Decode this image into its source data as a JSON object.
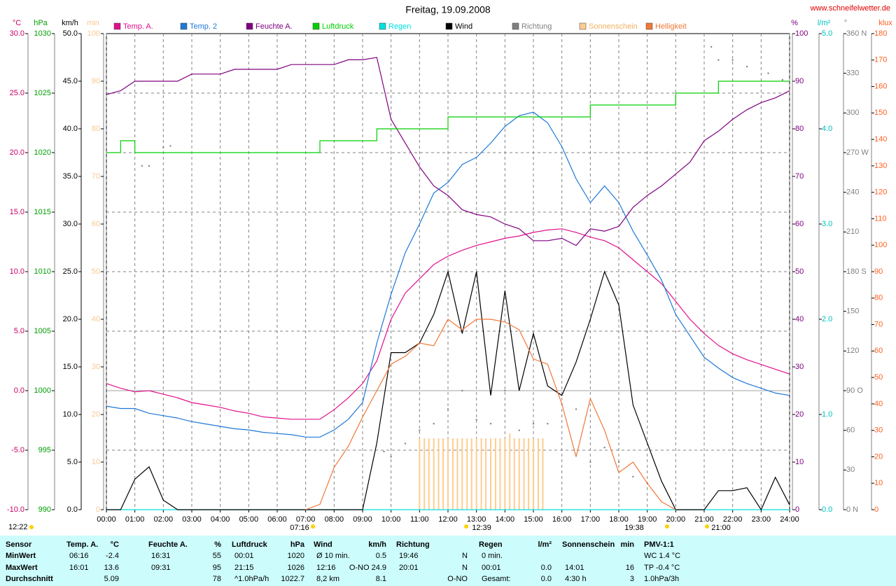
{
  "chart_data": {
    "type": "line",
    "title": "Freitag, 19.09.2008",
    "site": "www.schneifelwetter.de",
    "updated": "12:22",
    "annotations": [
      "07:16",
      "12:39",
      "19:38",
      "21:00"
    ],
    "grid": true,
    "xlim": [
      0,
      24
    ],
    "xticks": [
      {
        "value": 0,
        "label": "00:00"
      },
      {
        "value": 1,
        "label": "01:00"
      },
      {
        "value": 2,
        "label": "02:00"
      },
      {
        "value": 3,
        "label": "03:00"
      },
      {
        "value": 4,
        "label": "04:00"
      },
      {
        "value": 5,
        "label": "05:00"
      },
      {
        "value": 6,
        "label": "06:00"
      },
      {
        "value": 7,
        "label": "07:00"
      },
      {
        "value": 8,
        "label": "08:00"
      },
      {
        "value": 9,
        "label": "09:00"
      },
      {
        "value": 10,
        "label": "10:00"
      },
      {
        "value": 11,
        "label": "11:00"
      },
      {
        "value": 12,
        "label": "12:00"
      },
      {
        "value": 13,
        "label": "13:00"
      },
      {
        "value": 14,
        "label": "14:00"
      },
      {
        "value": 15,
        "label": "15:00"
      },
      {
        "value": 16,
        "label": "16:00"
      },
      {
        "value": 17,
        "label": "17:00"
      },
      {
        "value": 18,
        "label": "18:00"
      },
      {
        "value": 19,
        "label": "19:00"
      },
      {
        "value": 20,
        "label": "20:00"
      },
      {
        "value": 21,
        "label": "21:00"
      },
      {
        "value": 22,
        "label": "22:00"
      },
      {
        "value": 23,
        "label": "23:00"
      },
      {
        "value": 24,
        "label": "24:00"
      }
    ],
    "axes": [
      {
        "label": "°C",
        "side": "left",
        "color": "#cc0066",
        "lim": [
          -10,
          30
        ],
        "ticks": [
          {
            "value": -10,
            "label": "-10.0"
          },
          {
            "value": -5,
            "label": "-5.0"
          },
          {
            "value": 0,
            "label": "0.0"
          },
          {
            "value": 5,
            "label": "5.0"
          },
          {
            "value": 10,
            "label": "10.0"
          },
          {
            "value": 15,
            "label": "15.0"
          },
          {
            "value": 20,
            "label": "20.0"
          },
          {
            "value": 25,
            "label": "25.0"
          },
          {
            "value": 30,
            "label": "30.0"
          }
        ]
      },
      {
        "label": "hPa",
        "side": "left",
        "color": "#00a000",
        "lim": [
          990,
          1030
        ],
        "ticks": [
          990,
          995,
          1000,
          1005,
          1010,
          1015,
          1020,
          1025,
          1030
        ]
      },
      {
        "label": "km/h",
        "side": "left",
        "color": "#000000",
        "lim": [
          0,
          50
        ],
        "ticks": [
          {
            "value": 0,
            "label": "0.0"
          },
          {
            "value": 5,
            "label": "5.0"
          },
          {
            "value": 10,
            "label": "10.0"
          },
          {
            "value": 15,
            "label": "15.0"
          },
          {
            "value": 20,
            "label": "20.0"
          },
          {
            "value": 25,
            "label": "25.0"
          },
          {
            "value": 30,
            "label": "30.0"
          },
          {
            "value": 35,
            "label": "35.0"
          },
          {
            "value": 40,
            "label": "40.0"
          },
          {
            "value": 45,
            "label": "45.0"
          },
          {
            "value": 50,
            "label": "50.0"
          }
        ]
      },
      {
        "label": "min",
        "side": "left",
        "color": "#f8c890",
        "lim": [
          0,
          100
        ],
        "ticks": [
          0,
          10,
          20,
          30,
          40,
          50,
          60,
          70,
          80,
          90,
          100
        ]
      },
      {
        "label": "%",
        "side": "right",
        "color": "#800080",
        "lim": [
          0,
          100
        ],
        "ticks": [
          0,
          10,
          20,
          30,
          40,
          50,
          60,
          70,
          80,
          90,
          100
        ]
      },
      {
        "label": "l/m²",
        "side": "right",
        "color": "#00c0c0",
        "lim": [
          0,
          5
        ],
        "ticks": [
          {
            "value": 0,
            "label": "0.0"
          },
          {
            "value": 1,
            "label": "1.0"
          },
          {
            "value": 2,
            "label": "2.0"
          },
          {
            "value": 3,
            "label": "3.0"
          },
          {
            "value": 4,
            "label": "4.0"
          },
          {
            "value": 5,
            "label": "5.0"
          }
        ]
      },
      {
        "label": "°",
        "side": "right",
        "color": "#808080",
        "lim": [
          0,
          360
        ],
        "ticks": [
          {
            "value": 0,
            "label": "0 N"
          },
          30,
          60,
          {
            "value": 90,
            "label": "90 O"
          },
          120,
          150,
          {
            "value": 180,
            "label": "180 S"
          },
          210,
          240,
          {
            "value": 270,
            "label": "270 W"
          },
          300,
          330,
          {
            "value": 360,
            "label": "360 N"
          }
        ]
      },
      {
        "label": "klux",
        "side": "right",
        "color": "#ff6020",
        "lim": [
          0,
          180
        ],
        "ticks": [
          0,
          10,
          20,
          30,
          40,
          50,
          60,
          70,
          80,
          90,
          100,
          110,
          120,
          130,
          140,
          150,
          160,
          170,
          180
        ]
      }
    ],
    "x": [
      0,
      0.5,
      1,
      1.5,
      2,
      2.5,
      3,
      3.5,
      4,
      4.5,
      5,
      5.5,
      6,
      6.5,
      7,
      7.5,
      8,
      8.5,
      9,
      9.5,
      10,
      10.5,
      11,
      11.5,
      12,
      12.5,
      13,
      13.5,
      14,
      14.5,
      15,
      15.5,
      16,
      16.5,
      17,
      17.5,
      18,
      18.5,
      19,
      19.5,
      20,
      20.5,
      21,
      21.5,
      22,
      22.5,
      23,
      23.5,
      24
    ],
    "series": [
      {
        "name": "Temp. A.",
        "type": "line",
        "axis": 0,
        "color": "#e0108c",
        "values": [
          0.6,
          0.2,
          -0.1,
          0,
          -0.3,
          -0.6,
          -1.0,
          -1.2,
          -1.4,
          -1.7,
          -1.9,
          -2.2,
          -2.3,
          -2.4,
          -2.4,
          -2.4,
          -1.6,
          -0.6,
          0.6,
          2.5,
          6,
          8.2,
          9.4,
          10.6,
          11.3,
          11.8,
          12.2,
          12.5,
          12.8,
          13,
          13.3,
          13.5,
          13.6,
          13.3,
          12.9,
          12.6,
          12,
          11,
          10,
          9,
          7.5,
          6,
          4.8,
          3.8,
          3.1,
          2.6,
          2.2,
          1.8,
          1.4
        ]
      },
      {
        "name": "Temp. 2",
        "type": "line",
        "axis": 0,
        "color": "#1e78d6",
        "values": [
          -1.3,
          -1.5,
          -1.5,
          -1.9,
          -2.1,
          -2.3,
          -2.6,
          -2.8,
          -3.0,
          -3.2,
          -3.3,
          -3.5,
          -3.6,
          -3.7,
          -3.9,
          -3.9,
          -3.3,
          -2.4,
          -1.0,
          4,
          8.1,
          11.6,
          14,
          16.6,
          17.5,
          19,
          19.6,
          20.8,
          22.2,
          23.1,
          23.4,
          22.5,
          20.5,
          17.8,
          15.8,
          17.2,
          15.8,
          13.4,
          11.4,
          9.3,
          6.4,
          4.6,
          2.8,
          1.9,
          1.1,
          0.6,
          0.2,
          -0.2,
          -0.4
        ]
      },
      {
        "name": "Feuchte A.",
        "type": "line",
        "axis": 4,
        "color": "#800080",
        "values": [
          87.2,
          88,
          90,
          90,
          90,
          90,
          91.5,
          91.5,
          91.5,
          92.5,
          92.5,
          92.5,
          92.5,
          93.5,
          93.5,
          93.5,
          93.5,
          94.5,
          94.5,
          95,
          82,
          77,
          72,
          68,
          66,
          63,
          62,
          61.5,
          60,
          59,
          56.5,
          56.5,
          57,
          55.5,
          59,
          58.5,
          59.5,
          63.5,
          66,
          68,
          70.5,
          73,
          77.5,
          79.5,
          82,
          84,
          85.5,
          86.5,
          88
        ]
      },
      {
        "name": "Luftdruck",
        "type": "line",
        "step": true,
        "axis": 1,
        "color": "#00d000",
        "values": [
          1020,
          1021,
          1020,
          1020,
          1020,
          1020,
          1020,
          1020,
          1020,
          1020,
          1020,
          1020,
          1020,
          1020,
          1020,
          1021,
          1021,
          1021,
          1021,
          1022,
          1022,
          1022,
          1022,
          1022,
          1023,
          1023,
          1023,
          1023,
          1023,
          1023,
          1023,
          1023,
          1023,
          1023,
          1024,
          1024,
          1024,
          1024,
          1024,
          1024,
          1025,
          1025,
          1025,
          1026,
          1026,
          1026,
          1026,
          1026,
          1026
        ]
      },
      {
        "name": "Regen",
        "type": "line",
        "axis": 5,
        "color": "#00e0e0",
        "x": [
          0,
          24
        ],
        "values": [
          0,
          0
        ]
      },
      {
        "name": "Wind",
        "type": "line",
        "axis": 2,
        "color": "#000000",
        "values": [
          0,
          0,
          3.2,
          4.5,
          1.0,
          0,
          0,
          0,
          0,
          0,
          0,
          0,
          0,
          0,
          0,
          0,
          0,
          0,
          0,
          7,
          16.5,
          16.5,
          17.5,
          20.5,
          25,
          18.5,
          25,
          12,
          23,
          12.5,
          18.5,
          13,
          12,
          15.5,
          20,
          25,
          21.5,
          11,
          7,
          3,
          0,
          0,
          0,
          2,
          2,
          2.3,
          0,
          3.4,
          0.5
        ]
      },
      {
        "name": "Richtung",
        "type": "scatter",
        "axis": 6,
        "color": "#808080",
        "x": [
          1.25,
          1.5,
          2,
          2.25,
          9.75,
          10,
          10.5,
          11,
          11.5,
          12,
          12.5,
          13,
          13.5,
          14,
          14.5,
          15,
          15.5,
          16,
          16.5,
          17,
          17.5,
          18,
          18.5,
          19,
          21.25,
          21.5,
          22,
          22.5,
          23.25,
          23.75
        ],
        "values": [
          260,
          260,
          274,
          275,
          44,
          40,
          50,
          60,
          65,
          76,
          90,
          68,
          65,
          90,
          60,
          65,
          65,
          80,
          76,
          36,
          47,
          36,
          25,
          20,
          350,
          340,
          340,
          335,
          330,
          325
        ]
      },
      {
        "name": "Sonnenschein",
        "type": "bar",
        "axis": 3,
        "color": "#ffcc90",
        "x": [
          11,
          11.17,
          11.33,
          11.5,
          11.67,
          11.83,
          12,
          12.17,
          12.33,
          12.5,
          12.67,
          12.83,
          13,
          13.17,
          13.33,
          13.5,
          13.67,
          13.83,
          14,
          14.17,
          14.33,
          14.5,
          14.67,
          14.83,
          15,
          15.17,
          15.33
        ],
        "values": [
          15,
          15,
          15,
          15,
          15,
          15,
          15,
          15,
          15,
          15,
          15,
          15,
          15,
          15,
          15,
          15,
          15,
          15,
          15,
          16,
          15,
          15,
          15,
          15,
          15,
          15,
          15
        ]
      },
      {
        "name": "Helligkeit",
        "type": "line",
        "axis": 7,
        "color": "#f07838",
        "values": [
          null,
          null,
          null,
          null,
          null,
          null,
          null,
          null,
          null,
          null,
          null,
          null,
          null,
          null,
          0,
          2,
          16,
          24,
          35,
          45,
          55,
          58,
          63,
          62,
          72,
          68,
          72,
          72,
          71,
          68,
          57,
          55,
          40,
          20,
          42,
          30,
          14,
          18,
          10,
          3,
          0,
          null,
          null,
          null,
          null,
          null,
          null,
          null,
          null
        ]
      }
    ]
  },
  "table": {
    "headers": [
      {
        "label": "Sensor"
      },
      {
        "label": "Temp. A.",
        "unit": "°C"
      },
      {
        "label": "Feuchte A.",
        "unit": "%"
      },
      {
        "label": "Luftdruck",
        "unit": "hPa"
      },
      {
        "label": "Wind",
        "unit": "km/h"
      },
      {
        "label": "Richtung"
      },
      {
        "label": "Regen",
        "unit": "l/m²"
      },
      {
        "label": "Sonnenschein",
        "unit": "min"
      },
      {
        "label": "PMV-1:1"
      }
    ],
    "rows": [
      {
        "label": "MinWert",
        "cells": [
          {
            "left": "06:16",
            "right": "-2.4"
          },
          {
            "left": "16:31",
            "right": "55"
          },
          {
            "left": "00:01",
            "right": "1020"
          },
          {
            "left": "Ø 10 min.",
            "right": "0.5"
          },
          {
            "left": "19:46",
            "right": "N"
          },
          {
            "left": "0 min."
          },
          null,
          {
            "left": "WC 1.4 °C"
          }
        ]
      },
      {
        "label": "MaxWert",
        "cells": [
          {
            "left": "16:01",
            "right": "13.6"
          },
          {
            "left": "09:31",
            "right": "95"
          },
          {
            "left": "21:15",
            "right": "1026"
          },
          {
            "left": "12:16",
            "right": "O-NO 24.9"
          },
          {
            "left": "20:01",
            "right": "N"
          },
          {
            "left": "00:01",
            "right": "0.0"
          },
          {
            "left": "14:01",
            "right": "16"
          },
          {
            "left": "TP -0.4 °C"
          }
        ]
      },
      {
        "label": "Durchschnitt",
        "cells": [
          {
            "right": "5.09"
          },
          {
            "right": "78"
          },
          {
            "left": "^1.0hPa/h",
            "right": "1022.7"
          },
          {
            "left": "8,2 km",
            "right": "8.1"
          },
          {
            "right": "O-NO"
          },
          {
            "left": "Gesamt:",
            "right": "0.0"
          },
          {
            "left": "4:30 h",
            "right": "3"
          },
          {
            "left": "1.0hPa/3h"
          }
        ]
      }
    ]
  }
}
